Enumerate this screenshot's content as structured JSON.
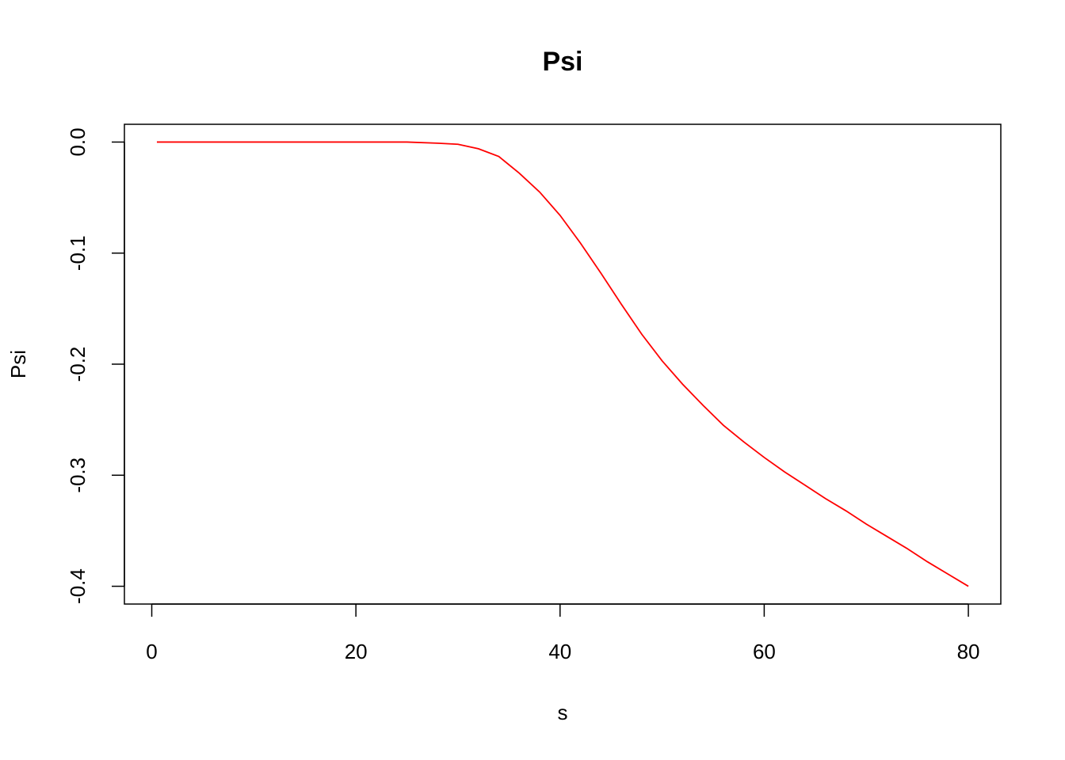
{
  "chart_data": {
    "type": "line",
    "title": "Psi",
    "xlabel": "s",
    "ylabel": "Psi",
    "x": [
      0.5,
      10,
      20,
      25,
      28,
      30,
      32,
      34,
      36,
      38,
      40,
      42,
      44,
      46,
      48,
      50,
      52,
      54,
      56,
      58,
      60,
      62,
      64,
      66,
      68,
      70,
      72,
      74,
      76,
      78,
      80
    ],
    "series": [
      {
        "color": "#ff0000",
        "values": [
          0,
          0,
          0,
          0,
          -0.001,
          -0.002,
          -0.006,
          -0.013,
          -0.028,
          -0.045,
          -0.066,
          -0.091,
          -0.118,
          -0.146,
          -0.173,
          -0.197,
          -0.218,
          -0.237,
          -0.255,
          -0.27,
          -0.284,
          -0.297,
          -0.309,
          -0.321,
          -0.332,
          -0.344,
          -0.355,
          -0.366,
          -0.378,
          -0.389,
          -0.4
        ]
      }
    ],
    "xlim": [
      -2.68,
      83.18
    ],
    "ylim": [
      -0.416,
      0.016
    ],
    "xticks": [
      0,
      20,
      40,
      60,
      80
    ],
    "yticks": [
      {
        "value": 0,
        "label": "0.0"
      },
      -0.1,
      -0.2,
      -0.3,
      -0.4
    ]
  }
}
